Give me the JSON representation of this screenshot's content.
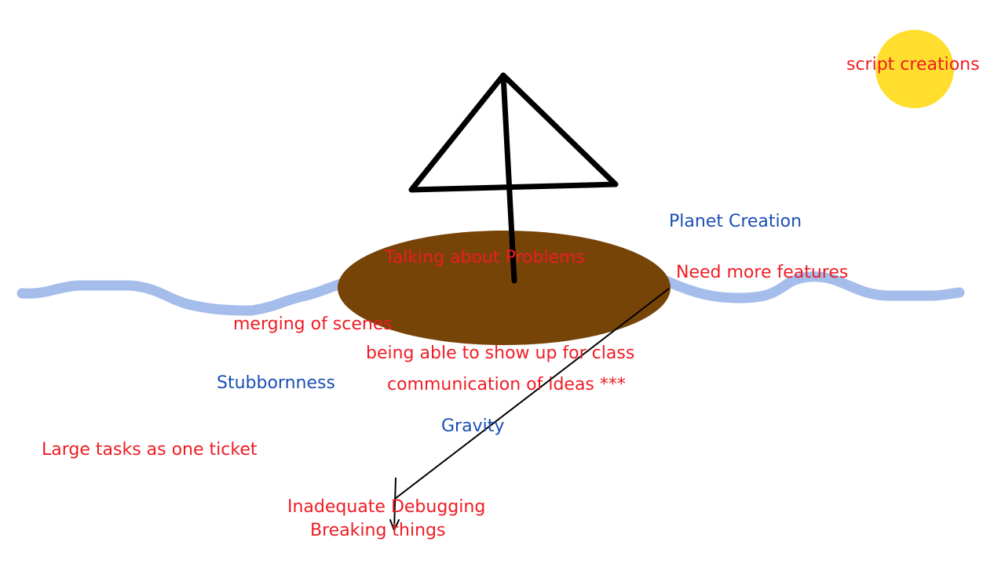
{
  "colors": {
    "water": "#a4bdea",
    "island": "#774408",
    "sun": "#ffde2e",
    "stroke": "#000000",
    "problem_text": "#ee1c24",
    "positive_text": "#1a4fb4"
  },
  "icons": {
    "sun": "sun-icon",
    "island": "island-icon",
    "umbrella": "umbrella-icon",
    "water": "water-wave-icon"
  },
  "labels": {
    "script_creations": "script creations",
    "planet_creation": "Planet Creation",
    "talking_about_problems": "Talking about Problems",
    "need_more_features": "Need more features",
    "merging_of_scenes": "merging of scenes",
    "being_able_to_show_up": "being able to show up for class",
    "stubbornness": "Stubbornness",
    "communication_of_ideas": "communication of ideas ***",
    "gravity": "Gravity",
    "large_tasks": "Large tasks as one ticket",
    "inadequate_debugging": "Inadequate Debugging",
    "breaking_things": "Breaking things"
  }
}
